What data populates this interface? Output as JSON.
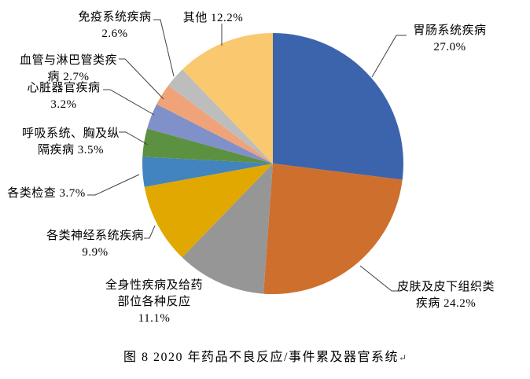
{
  "figure": {
    "caption": "图 8  2020 年药品不良反应/事件累及器官系统",
    "caption_return_mark": "↵"
  },
  "chart_data": {
    "type": "pie",
    "title": "图 8 2020 年药品不良反应/事件累及器官系统",
    "unit": "%",
    "start_angle_deg": 0,
    "direction": "clockwise",
    "legend": "none (direct category labels with leader lines)",
    "leader_line_color": "#404040",
    "slices": [
      {
        "label": "胃肠系统疾病",
        "value": 27.0,
        "display": "27.0%",
        "color": "#3C64AC",
        "label_lines": [
          "胃肠系统疾病",
          "27.0%"
        ]
      },
      {
        "label": "皮肤及皮下组织类疾病",
        "value": 24.2,
        "display": "24.2%",
        "color": "#CE6F2D",
        "label_lines": [
          "皮肤及皮下组织类",
          "疾病 24.2%"
        ]
      },
      {
        "label": "全身性疾病及给药部位各种反应",
        "value": 11.1,
        "display": "11.1%",
        "color": "#969696",
        "label_lines": [
          "全身性疾病及给药",
          "部位各种反应",
          "11.1%"
        ]
      },
      {
        "label": "各类神经系统疾病",
        "value": 9.9,
        "display": "9.9%",
        "color": "#E0A800",
        "label_lines": [
          "各类神经系统疾病",
          "9.9%"
        ]
      },
      {
        "label": "各类检查",
        "value": 3.7,
        "display": "3.7%",
        "color": "#4184BE",
        "label_lines": [
          "各类检查 3.7%"
        ]
      },
      {
        "label": "呼吸系统、胸及纵隔疾病",
        "value": 3.5,
        "display": "3.5%",
        "color": "#5B9140",
        "label_lines": [
          "呼吸系统、胸及纵",
          "隔疾病 3.5%"
        ]
      },
      {
        "label": "心脏器官疾病",
        "value": 3.2,
        "display": "3.2%",
        "color": "#8090C8",
        "label_lines": [
          "心脏器官疾病",
          "3.2%"
        ]
      },
      {
        "label": "血管与淋巴管类疾病",
        "value": 2.7,
        "display": "2.7%",
        "color": "#F0A378",
        "label_lines": [
          "血管与淋巴管类疾",
          "病 2.7%"
        ]
      },
      {
        "label": "免疫系统疾病",
        "value": 2.6,
        "display": "2.6%",
        "color": "#BDBDBD",
        "label_lines": [
          "免疫系统疾病",
          "2.6%"
        ]
      },
      {
        "label": "其他",
        "value": 12.2,
        "display": "12.2%",
        "color": "#FAC86E",
        "label_lines": [
          "其他 12.2%"
        ]
      }
    ]
  }
}
